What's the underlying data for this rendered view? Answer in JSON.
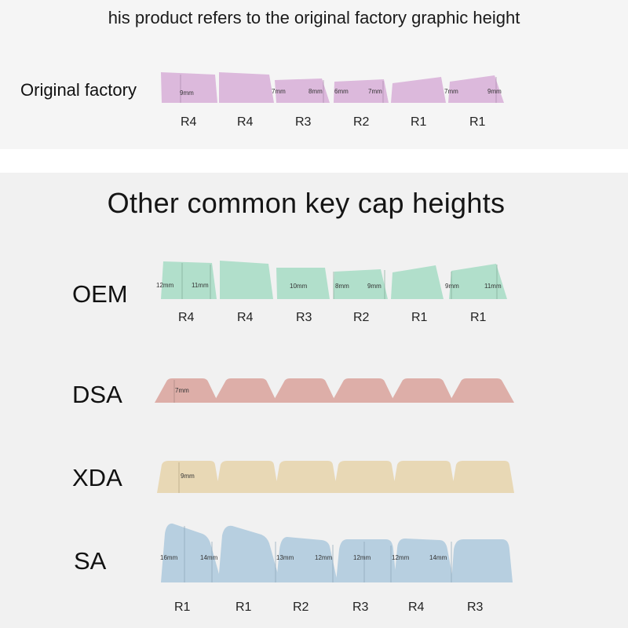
{
  "top": {
    "caption": "his product refers to the original factory graphic height",
    "row_label": "Original factory",
    "row_labels": [
      "R4",
      "R4",
      "R3",
      "R2",
      "R1",
      "R1"
    ],
    "measurements": [
      "9mm",
      "7mm",
      "8mm",
      "6mm",
      "7mm",
      "7mm",
      "9mm"
    ]
  },
  "bottom": {
    "heading": "Other common key cap heights",
    "oem": {
      "label": "OEM",
      "row_labels": [
        "R4",
        "R4",
        "R3",
        "R2",
        "R1",
        "R1"
      ],
      "measurements": [
        "12mm",
        "11mm",
        "10mm",
        "8mm",
        "9mm",
        "9mm",
        "11mm"
      ]
    },
    "dsa": {
      "label": "DSA",
      "measurements": [
        "7mm"
      ]
    },
    "xda": {
      "label": "XDA",
      "measurements": [
        "9mm"
      ]
    },
    "sa": {
      "label": "SA",
      "row_labels": [
        "R1",
        "R1",
        "R2",
        "R3",
        "R4",
        "R3"
      ],
      "measurements": [
        "16mm",
        "14mm",
        "13mm",
        "12mm",
        "12mm",
        "12mm",
        "14mm"
      ]
    }
  },
  "colors": {
    "original": "#dcb9dc",
    "oem": "#b1dfcb",
    "dsa": "#ddaea8",
    "xda": "#e8d8b5",
    "sa": "#b7cfe0"
  }
}
